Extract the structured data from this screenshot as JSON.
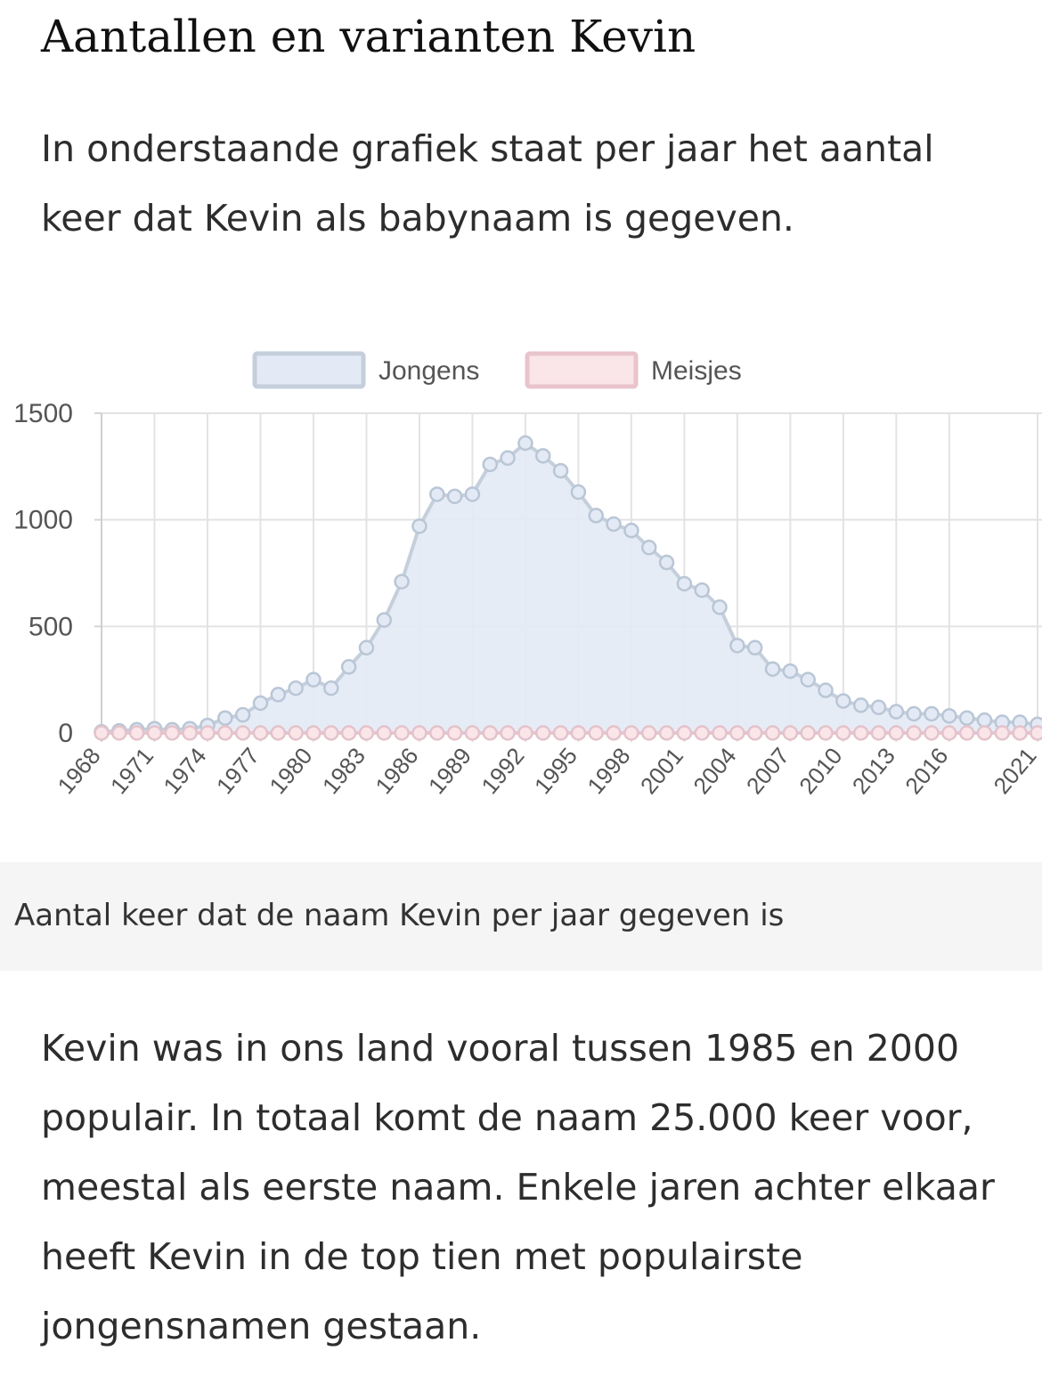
{
  "article": {
    "title": "Aantallen en varianten Kevin",
    "intro": "In onderstaande grafiek staat per jaar het aantal keer dat Kevin als babynaam is gegeven.",
    "caption": "Aantal keer dat de naam Kevin per jaar gegeven is",
    "outro": "Kevin was in ons land vooral tussen 1985 en 2000 populair. In totaal komt de naam 25.000 keer voor, meestal als eerste naam. Enkele jaren achter elkaar heeft Kevin in de top tien met populairste jongensnamen gestaan."
  },
  "chart_data": {
    "type": "line",
    "title": "",
    "xlabel": "",
    "ylabel": "",
    "ylim": [
      0,
      1500
    ],
    "yticks": [
      0,
      500,
      1000,
      1500
    ],
    "xticks": [
      "1968",
      "1971",
      "1974",
      "1977",
      "1980",
      "1983",
      "1986",
      "1989",
      "1992",
      "1995",
      "1998",
      "2001",
      "2004",
      "2007",
      "2010",
      "2013",
      "2016",
      "2021"
    ],
    "grid": true,
    "legend_position": "top",
    "x": [
      1968,
      1969,
      1970,
      1971,
      1972,
      1973,
      1974,
      1975,
      1976,
      1977,
      1978,
      1979,
      1980,
      1981,
      1982,
      1983,
      1984,
      1985,
      1986,
      1987,
      1988,
      1989,
      1990,
      1991,
      1992,
      1993,
      1994,
      1995,
      1996,
      1997,
      1998,
      1999,
      2000,
      2001,
      2002,
      2003,
      2004,
      2005,
      2006,
      2007,
      2008,
      2009,
      2010,
      2011,
      2012,
      2013,
      2014,
      2015,
      2016,
      2017,
      2018,
      2019,
      2020,
      2021
    ],
    "series": [
      {
        "name": "Jongens",
        "color": "#c5cfdc",
        "fill": "#e3eaf5",
        "values": [
          5,
          10,
          15,
          20,
          15,
          20,
          35,
          70,
          85,
          140,
          180,
          210,
          250,
          210,
          310,
          400,
          530,
          710,
          970,
          1120,
          1110,
          1120,
          1260,
          1290,
          1360,
          1300,
          1230,
          1130,
          1020,
          980,
          950,
          870,
          800,
          700,
          670,
          590,
          410,
          400,
          300,
          290,
          250,
          200,
          150,
          130,
          120,
          100,
          90,
          90,
          80,
          70,
          60,
          50,
          50,
          40
        ],
        "marker_color": "#b9c6d6"
      },
      {
        "name": "Meisjes",
        "color": "#e9c4cc",
        "fill": "#fae5e9",
        "values": [
          0,
          0,
          0,
          0,
          0,
          0,
          0,
          0,
          0,
          0,
          0,
          0,
          0,
          0,
          0,
          0,
          0,
          0,
          0,
          0,
          0,
          0,
          0,
          0,
          0,
          0,
          0,
          0,
          0,
          0,
          0,
          0,
          0,
          0,
          0,
          0,
          0,
          0,
          0,
          0,
          0,
          0,
          0,
          0,
          0,
          0,
          0,
          0,
          0,
          0,
          0,
          0,
          0,
          0
        ],
        "marker_color": "#e3c3cb"
      }
    ]
  }
}
